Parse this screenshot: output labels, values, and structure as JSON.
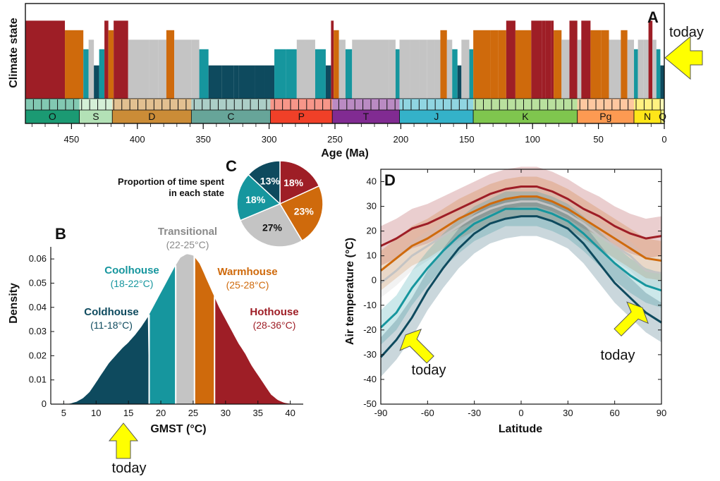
{
  "colors": {
    "coldhouse": "#0e4a5e",
    "coolhouse": "#16969e",
    "transitional": "#c4c4c4",
    "warmhouse": "#cf6a0c",
    "hothouse": "#9e1e26",
    "arrow": "#ffff00"
  },
  "chart_data": [
    {
      "panel": "A",
      "type": "bar",
      "ylabel": "Climate state",
      "xlabel": "Age (Ma)",
      "xlim": [
        485,
        0
      ],
      "xticks": [
        "450",
        "400",
        "350",
        "300",
        "250",
        "200",
        "150",
        "100",
        "50",
        "0"
      ],
      "annotation": "today",
      "periods": [
        {
          "name": "O",
          "start": 485,
          "end": 444,
          "color": "#1b9a73"
        },
        {
          "name": "S",
          "start": 444,
          "end": 419,
          "color": "#b3e1b6"
        },
        {
          "name": "D",
          "start": 419,
          "end": 359,
          "color": "#cb8c37"
        },
        {
          "name": "C",
          "start": 359,
          "end": 299,
          "color": "#67a599"
        },
        {
          "name": "P",
          "start": 299,
          "end": 252,
          "color": "#f04028"
        },
        {
          "name": "T",
          "start": 252,
          "end": 201,
          "color": "#812b92"
        },
        {
          "name": "J",
          "start": 201,
          "end": 145,
          "color": "#34b2c9"
        },
        {
          "name": "K",
          "start": 145,
          "end": 66,
          "color": "#7fc64e"
        },
        {
          "name": "Pg",
          "start": 66,
          "end": 23,
          "color": "#fd9a52"
        },
        {
          "name": "N",
          "start": 23,
          "end": 2.6,
          "color": "#ffe619"
        },
        {
          "name": "Q",
          "start": 2.6,
          "end": 0,
          "color": "#f9f97f"
        }
      ],
      "segments": [
        {
          "start": 485,
          "end": 455,
          "state": "hothouse"
        },
        {
          "start": 455,
          "end": 441,
          "state": "warmhouse"
        },
        {
          "start": 441,
          "end": 437,
          "state": "coolhouse"
        },
        {
          "start": 437,
          "end": 433,
          "state": "transitional"
        },
        {
          "start": 433,
          "end": 429,
          "state": "coldhouse"
        },
        {
          "start": 429,
          "end": 425,
          "state": "coolhouse"
        },
        {
          "start": 425,
          "end": 422,
          "state": "hothouse"
        },
        {
          "start": 422,
          "end": 418,
          "state": "warmhouse"
        },
        {
          "start": 418,
          "end": 407,
          "state": "hothouse"
        },
        {
          "start": 407,
          "end": 391,
          "state": "transitional"
        },
        {
          "start": 391,
          "end": 384,
          "state": "transitional"
        },
        {
          "start": 384,
          "end": 378,
          "state": "transitional"
        },
        {
          "start": 378,
          "end": 372,
          "state": "warmhouse"
        },
        {
          "start": 372,
          "end": 359,
          "state": "transitional"
        },
        {
          "start": 359,
          "end": 353,
          "state": "transitional"
        },
        {
          "start": 353,
          "end": 346,
          "state": "coolhouse"
        },
        {
          "start": 346,
          "end": 336,
          "state": "coldhouse"
        },
        {
          "start": 336,
          "end": 327,
          "state": "coldhouse"
        },
        {
          "start": 327,
          "end": 323,
          "state": "coldhouse"
        },
        {
          "start": 323,
          "end": 311,
          "state": "coldhouse"
        },
        {
          "start": 311,
          "end": 303,
          "state": "coldhouse"
        },
        {
          "start": 303,
          "end": 296,
          "state": "coldhouse"
        },
        {
          "start": 296,
          "end": 287,
          "state": "coolhouse"
        },
        {
          "start": 287,
          "end": 279,
          "state": "coolhouse"
        },
        {
          "start": 279,
          "end": 273,
          "state": "transitional"
        },
        {
          "start": 273,
          "end": 265,
          "state": "transitional"
        },
        {
          "start": 265,
          "end": 257,
          "state": "coolhouse"
        },
        {
          "start": 257,
          "end": 253,
          "state": "coldhouse"
        },
        {
          "start": 253,
          "end": 251,
          "state": "hothouse"
        },
        {
          "start": 251,
          "end": 247,
          "state": "warmhouse"
        },
        {
          "start": 247,
          "end": 242,
          "state": "transitional"
        },
        {
          "start": 242,
          "end": 237,
          "state": "coolhouse"
        },
        {
          "start": 237,
          "end": 209,
          "state": "transitional"
        },
        {
          "start": 209,
          "end": 204,
          "state": "transitional"
        },
        {
          "start": 204,
          "end": 201,
          "state": "coolhouse"
        },
        {
          "start": 201,
          "end": 193,
          "state": "transitional"
        },
        {
          "start": 193,
          "end": 186,
          "state": "transitional"
        },
        {
          "start": 186,
          "end": 180,
          "state": "transitional"
        },
        {
          "start": 180,
          "end": 174,
          "state": "transitional"
        },
        {
          "start": 174,
          "end": 170,
          "state": "transitional"
        },
        {
          "start": 170,
          "end": 165,
          "state": "warmhouse"
        },
        {
          "start": 165,
          "end": 161,
          "state": "transitional"
        },
        {
          "start": 161,
          "end": 157,
          "state": "coolhouse"
        },
        {
          "start": 157,
          "end": 154,
          "state": "coldhouse"
        },
        {
          "start": 154,
          "end": 148,
          "state": "transitional"
        },
        {
          "start": 148,
          "end": 145,
          "state": "coolhouse"
        },
        {
          "start": 145,
          "end": 132,
          "state": "warmhouse"
        },
        {
          "start": 132,
          "end": 126,
          "state": "warmhouse"
        },
        {
          "start": 126,
          "end": 120,
          "state": "warmhouse"
        },
        {
          "start": 120,
          "end": 113,
          "state": "hothouse"
        },
        {
          "start": 113,
          "end": 101,
          "state": "warmhouse"
        },
        {
          "start": 101,
          "end": 93,
          "state": "hothouse"
        },
        {
          "start": 93,
          "end": 90,
          "state": "hothouse"
        },
        {
          "start": 90,
          "end": 86,
          "state": "hothouse"
        },
        {
          "start": 86,
          "end": 84,
          "state": "hothouse"
        },
        {
          "start": 84,
          "end": 78,
          "state": "warmhouse"
        },
        {
          "start": 78,
          "end": 72,
          "state": "transitional"
        },
        {
          "start": 72,
          "end": 66,
          "state": "hothouse"
        },
        {
          "start": 66,
          "end": 63,
          "state": "transitional"
        },
        {
          "start": 63,
          "end": 56,
          "state": "hothouse"
        },
        {
          "start": 56,
          "end": 53,
          "state": "warmhouse"
        },
        {
          "start": 53,
          "end": 48,
          "state": "warmhouse"
        },
        {
          "start": 48,
          "end": 42,
          "state": "warmhouse"
        },
        {
          "start": 42,
          "end": 38,
          "state": "transitional"
        },
        {
          "start": 38,
          "end": 33,
          "state": "transitional"
        },
        {
          "start": 33,
          "end": 28,
          "state": "warmhouse"
        },
        {
          "start": 28,
          "end": 23,
          "state": "transitional"
        },
        {
          "start": 23,
          "end": 20,
          "state": "coolhouse"
        },
        {
          "start": 20,
          "end": 16,
          "state": "transitional"
        },
        {
          "start": 16,
          "end": 12,
          "state": "transitional"
        },
        {
          "start": 12,
          "end": 9,
          "state": "hothouse"
        },
        {
          "start": 9,
          "end": 6,
          "state": "transitional"
        },
        {
          "start": 6,
          "end": 3,
          "state": "coolhouse"
        },
        {
          "start": 3,
          "end": 0,
          "state": "coldhouse"
        }
      ],
      "levels": {
        "coldhouse": 0.35,
        "coolhouse": 0.52,
        "transitional": 0.62,
        "warmhouse": 0.72,
        "hothouse": 0.82
      }
    },
    {
      "panel": "B",
      "type": "area",
      "xlabel": "GMST (°C)",
      "ylabel": "Density",
      "xlim": [
        3,
        42
      ],
      "ylim": [
        0,
        0.065
      ],
      "xticks": [
        5,
        10,
        15,
        20,
        25,
        30,
        35,
        40
      ],
      "yticks": [
        "0",
        "0.01",
        "0.02",
        "0.03",
        "0.04",
        "0.05",
        "0.06"
      ],
      "x": [
        5,
        6,
        7,
        8,
        9,
        10,
        11,
        12,
        13,
        14,
        15,
        16,
        17,
        18,
        19,
        20,
        21,
        22,
        23,
        24,
        25,
        26,
        27,
        28,
        29,
        30,
        31,
        32,
        33,
        34,
        35,
        36,
        37,
        38,
        39,
        40,
        41
      ],
      "y": [
        0,
        0.0002,
        0.001,
        0.0025,
        0.005,
        0.009,
        0.013,
        0.017,
        0.02,
        0.023,
        0.0255,
        0.0285,
        0.032,
        0.036,
        0.041,
        0.046,
        0.051,
        0.056,
        0.0605,
        0.062,
        0.0615,
        0.058,
        0.052,
        0.046,
        0.04,
        0.035,
        0.03,
        0.025,
        0.021,
        0.016,
        0.012,
        0.008,
        0.004,
        0.0018,
        0.0006,
        0.0001,
        0
      ],
      "states": [
        {
          "name": "Coldhouse",
          "range": "(11-18°C)",
          "from": 5,
          "to": 18.2,
          "key": "coldhouse"
        },
        {
          "name": "Coolhouse",
          "range": "(18-22°C)",
          "from": 18.2,
          "to": 22.3,
          "key": "coolhouse"
        },
        {
          "name": "Transitional",
          "range": "(22-25°C)",
          "from": 22.3,
          "to": 25.2,
          "key": "transitional"
        },
        {
          "name": "Warmhouse",
          "range": "(25-28°C)",
          "from": 25.2,
          "to": 28.3,
          "key": "warmhouse"
        },
        {
          "name": "Hothouse",
          "range": "(28-36°C)",
          "from": 28.3,
          "to": 41,
          "key": "hothouse"
        }
      ],
      "annotation": {
        "text": "today",
        "x": 15
      }
    },
    {
      "panel": "C",
      "type": "pie",
      "title": "Proportion of time spent in each state",
      "slices": [
        {
          "key": "hothouse",
          "value": 18,
          "label": "18%"
        },
        {
          "key": "warmhouse",
          "value": 23,
          "label": "23%"
        },
        {
          "key": "transitional",
          "value": 27,
          "label": "27%"
        },
        {
          "key": "coolhouse",
          "value": 18,
          "label": "18%"
        },
        {
          "key": "coldhouse",
          "value": 13,
          "label": "13%"
        }
      ]
    },
    {
      "panel": "D",
      "type": "line",
      "xlabel": "Latitude",
      "ylabel": "Air temperature (°C)",
      "xlim": [
        -90,
        90
      ],
      "ylim": [
        -50,
        45
      ],
      "xticks": [
        "-90",
        "-60",
        "-30",
        "0",
        "30",
        "60",
        "90"
      ],
      "yticks": [
        "-50",
        "-40",
        "-30",
        "-20",
        "-10",
        "0",
        "10",
        "20",
        "30",
        "40"
      ],
      "x": [
        -90,
        -80,
        -70,
        -60,
        -50,
        -40,
        -30,
        -20,
        -10,
        0,
        10,
        20,
        30,
        40,
        50,
        60,
        70,
        80,
        90
      ],
      "series": [
        {
          "key": "hothouse",
          "values": [
            14,
            17,
            21,
            23,
            26,
            29,
            32,
            35,
            37,
            38,
            38,
            36,
            33,
            29,
            26,
            22,
            19,
            17,
            18
          ],
          "spread": 8
        },
        {
          "key": "warmhouse",
          "values": [
            4,
            9,
            14,
            17,
            21,
            25,
            28,
            31,
            33,
            34,
            34,
            32,
            29,
            25,
            21,
            17,
            13,
            9,
            8
          ],
          "spread": 8
        },
        {
          "key": "transitional",
          "values": [
            -1,
            4,
            10,
            14,
            18,
            22,
            26,
            29,
            31,
            32,
            32,
            30,
            27,
            23,
            18,
            14,
            10,
            4,
            3
          ],
          "spread": 6
        },
        {
          "key": "coolhouse",
          "values": [
            -19,
            -13,
            -3,
            5,
            12,
            18,
            23,
            26,
            29,
            29,
            29,
            27,
            24,
            19,
            13,
            7,
            2,
            -2,
            -4
          ],
          "spread": 7
        },
        {
          "key": "coldhouse",
          "values": [
            -31,
            -24,
            -15,
            -4,
            5,
            13,
            19,
            23,
            25,
            26,
            26,
            24,
            21,
            15,
            7,
            -1,
            -7,
            -13,
            -17
          ],
          "spread": 8
        }
      ],
      "annotations": [
        {
          "text": "today",
          "x": -75,
          "y": -20
        },
        {
          "text": "today",
          "x": 72,
          "y": -13
        }
      ]
    }
  ],
  "labels": {
    "panel_a": "A",
    "panel_b": "B",
    "panel_c": "C",
    "panel_d": "D",
    "today": "today"
  }
}
